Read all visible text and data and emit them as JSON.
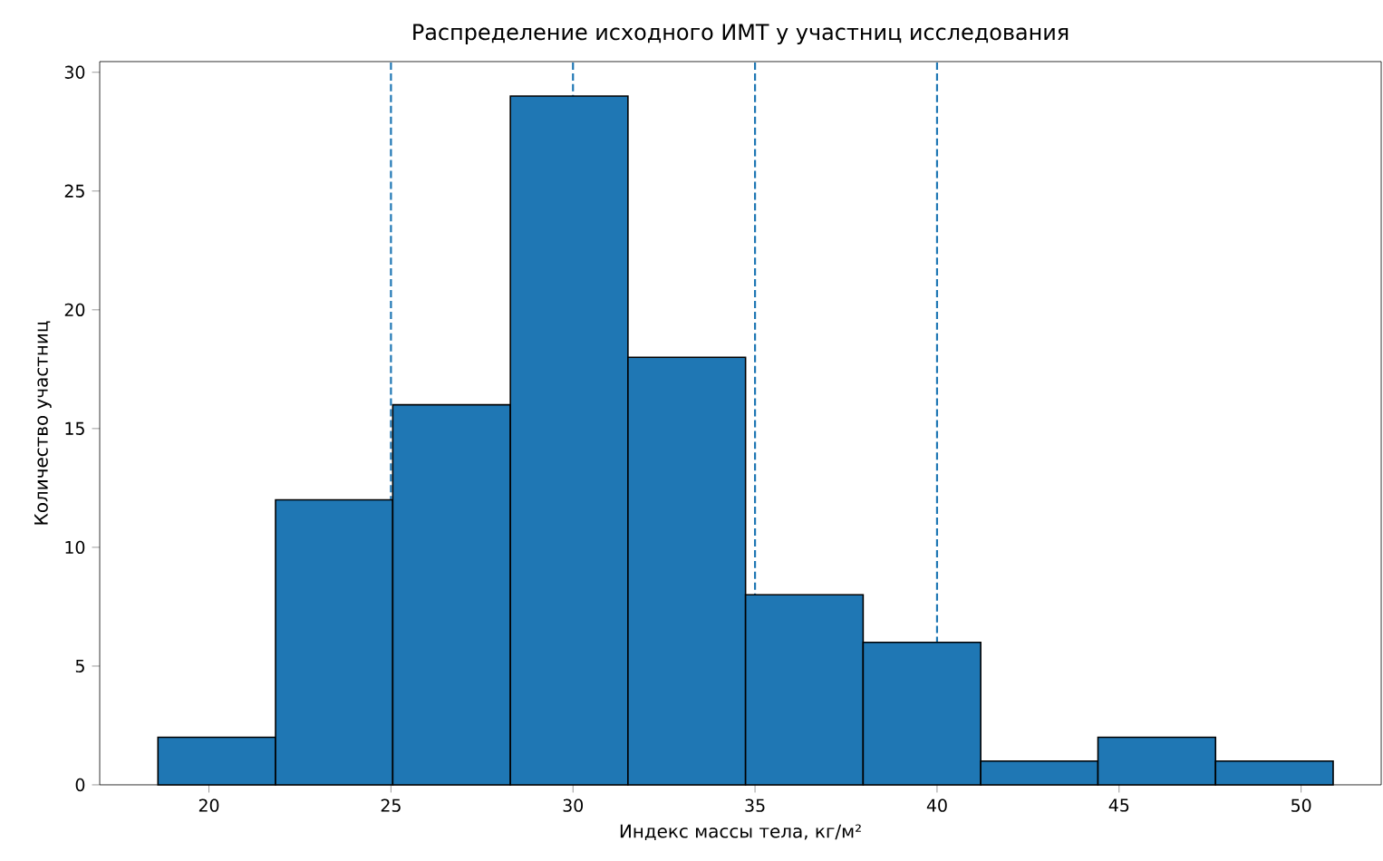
{
  "chart_data": {
    "type": "histogram",
    "title": "Распределение исходного ИМТ у участниц исследования",
    "xlabel": "Индекс массы тела, кг/м²",
    "ylabel": "Количество участниц",
    "bins": [
      18.6,
      21.83,
      25.05,
      28.28,
      31.51,
      34.74,
      37.97,
      41.2,
      44.42,
      47.65,
      50.88
    ],
    "values": [
      2,
      12,
      16,
      29,
      18,
      8,
      6,
      1,
      2,
      1
    ],
    "color": "#1f77b4",
    "xlim": [
      17,
      52.2
    ],
    "ylim": [
      0,
      30.45
    ],
    "xticks": [
      20,
      25,
      30,
      35,
      40,
      45,
      50
    ],
    "yticks": [
      0,
      5,
      10,
      15,
      20,
      25,
      30
    ],
    "ref_lines": [
      {
        "axis": "x",
        "value": 25,
        "color": "#1f77b4",
        "line_style": "dashed"
      },
      {
        "axis": "x",
        "value": 30,
        "color": "#1f77b4",
        "line_style": "dashed"
      },
      {
        "axis": "x",
        "value": 35,
        "color": "#1f77b4",
        "line_style": "dashed"
      },
      {
        "axis": "x",
        "value": 40,
        "color": "#1f77b4",
        "line_style": "dashed"
      }
    ]
  }
}
